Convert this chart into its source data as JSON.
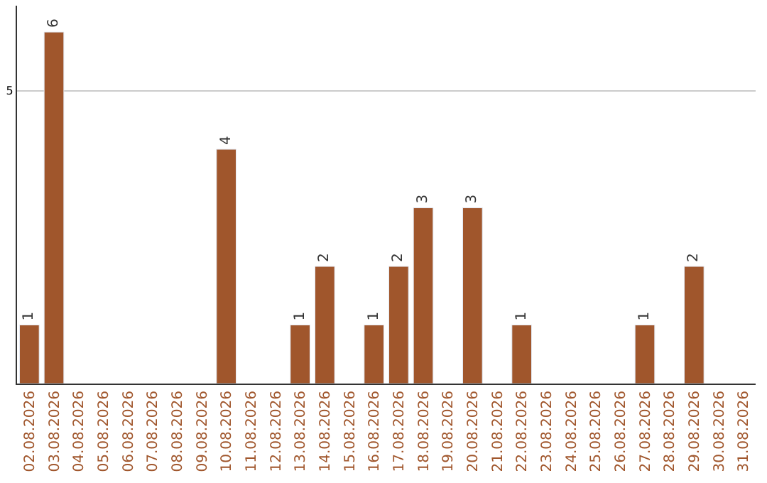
{
  "chart_data": {
    "type": "bar",
    "categories": [
      "02.08.2026",
      "03.08.2026",
      "04.08.2026",
      "05.08.2026",
      "06.08.2026",
      "07.08.2026",
      "08.08.2026",
      "09.08.2026",
      "10.08.2026",
      "11.08.2026",
      "12.08.2026",
      "13.08.2026",
      "14.08.2026",
      "15.08.2026",
      "16.08.2026",
      "17.08.2026",
      "18.08.2026",
      "19.08.2026",
      "20.08.2026",
      "21.08.2026",
      "22.08.2026",
      "23.08.2026",
      "24.08.2026",
      "25.08.2026",
      "26.08.2026",
      "27.08.2026",
      "28.08.2026",
      "29.08.2026",
      "30.08.2026",
      "31.08.2026"
    ],
    "values": [
      1,
      6,
      null,
      null,
      null,
      null,
      null,
      null,
      4,
      null,
      null,
      1,
      2,
      null,
      1,
      2,
      3,
      null,
      3,
      null,
      1,
      null,
      null,
      null,
      null,
      1,
      null,
      2,
      null,
      null
    ],
    "color": "#a0562c",
    "ylim": [
      0,
      6.45
    ],
    "yticks": [
      5
    ],
    "grid": "y",
    "data_labels": true
  }
}
